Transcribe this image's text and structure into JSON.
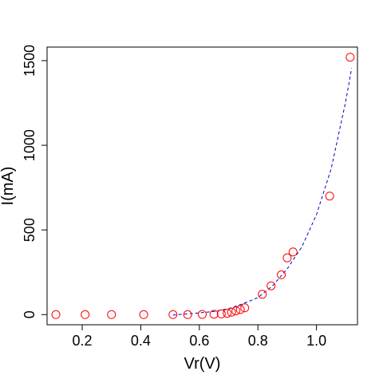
{
  "chart_data": {
    "type": "scatter",
    "title": "",
    "xlabel": "Vr(V)",
    "ylabel": "I(mA)",
    "xlim": [
      0.08,
      1.14
    ],
    "ylim": [
      -60,
      1580
    ],
    "xticks": [
      0.2,
      0.4,
      0.6,
      0.8,
      1.0
    ],
    "xtick_labels": [
      "0.2",
      "0.4",
      "0.6",
      "0.8",
      "1.0"
    ],
    "yticks": [
      0,
      500,
      1000,
      1500
    ],
    "ytick_labels": [
      "0",
      "500",
      "1000",
      "1500"
    ],
    "grid": false,
    "legend": "none",
    "series": [
      {
        "kind": "points",
        "marker": "open-circle",
        "color": "#ff0000",
        "x": [
          0.11,
          0.21,
          0.3,
          0.41,
          0.51,
          0.56,
          0.61,
          0.65,
          0.675,
          0.695,
          0.71,
          0.725,
          0.74,
          0.755,
          0.815,
          0.845,
          0.88,
          0.9,
          0.92,
          1.045,
          1.115
        ],
        "y": [
          0,
          0,
          0,
          0,
          0,
          0,
          1,
          2,
          4,
          8,
          14,
          22,
          30,
          40,
          120,
          170,
          235,
          335,
          370,
          700,
          1520
        ]
      },
      {
        "kind": "fit-curve",
        "style": "dashed",
        "color": "#0000cc",
        "x": [
          0.51,
          0.55,
          0.6,
          0.65,
          0.7,
          0.75,
          0.8,
          0.85,
          0.9,
          0.95,
          1.0,
          1.05,
          1.1,
          1.12
        ],
        "y": [
          -3,
          3,
          10,
          18,
          35,
          65,
          100,
          170,
          270,
          400,
          590,
          860,
          1260,
          1455
        ]
      }
    ]
  }
}
